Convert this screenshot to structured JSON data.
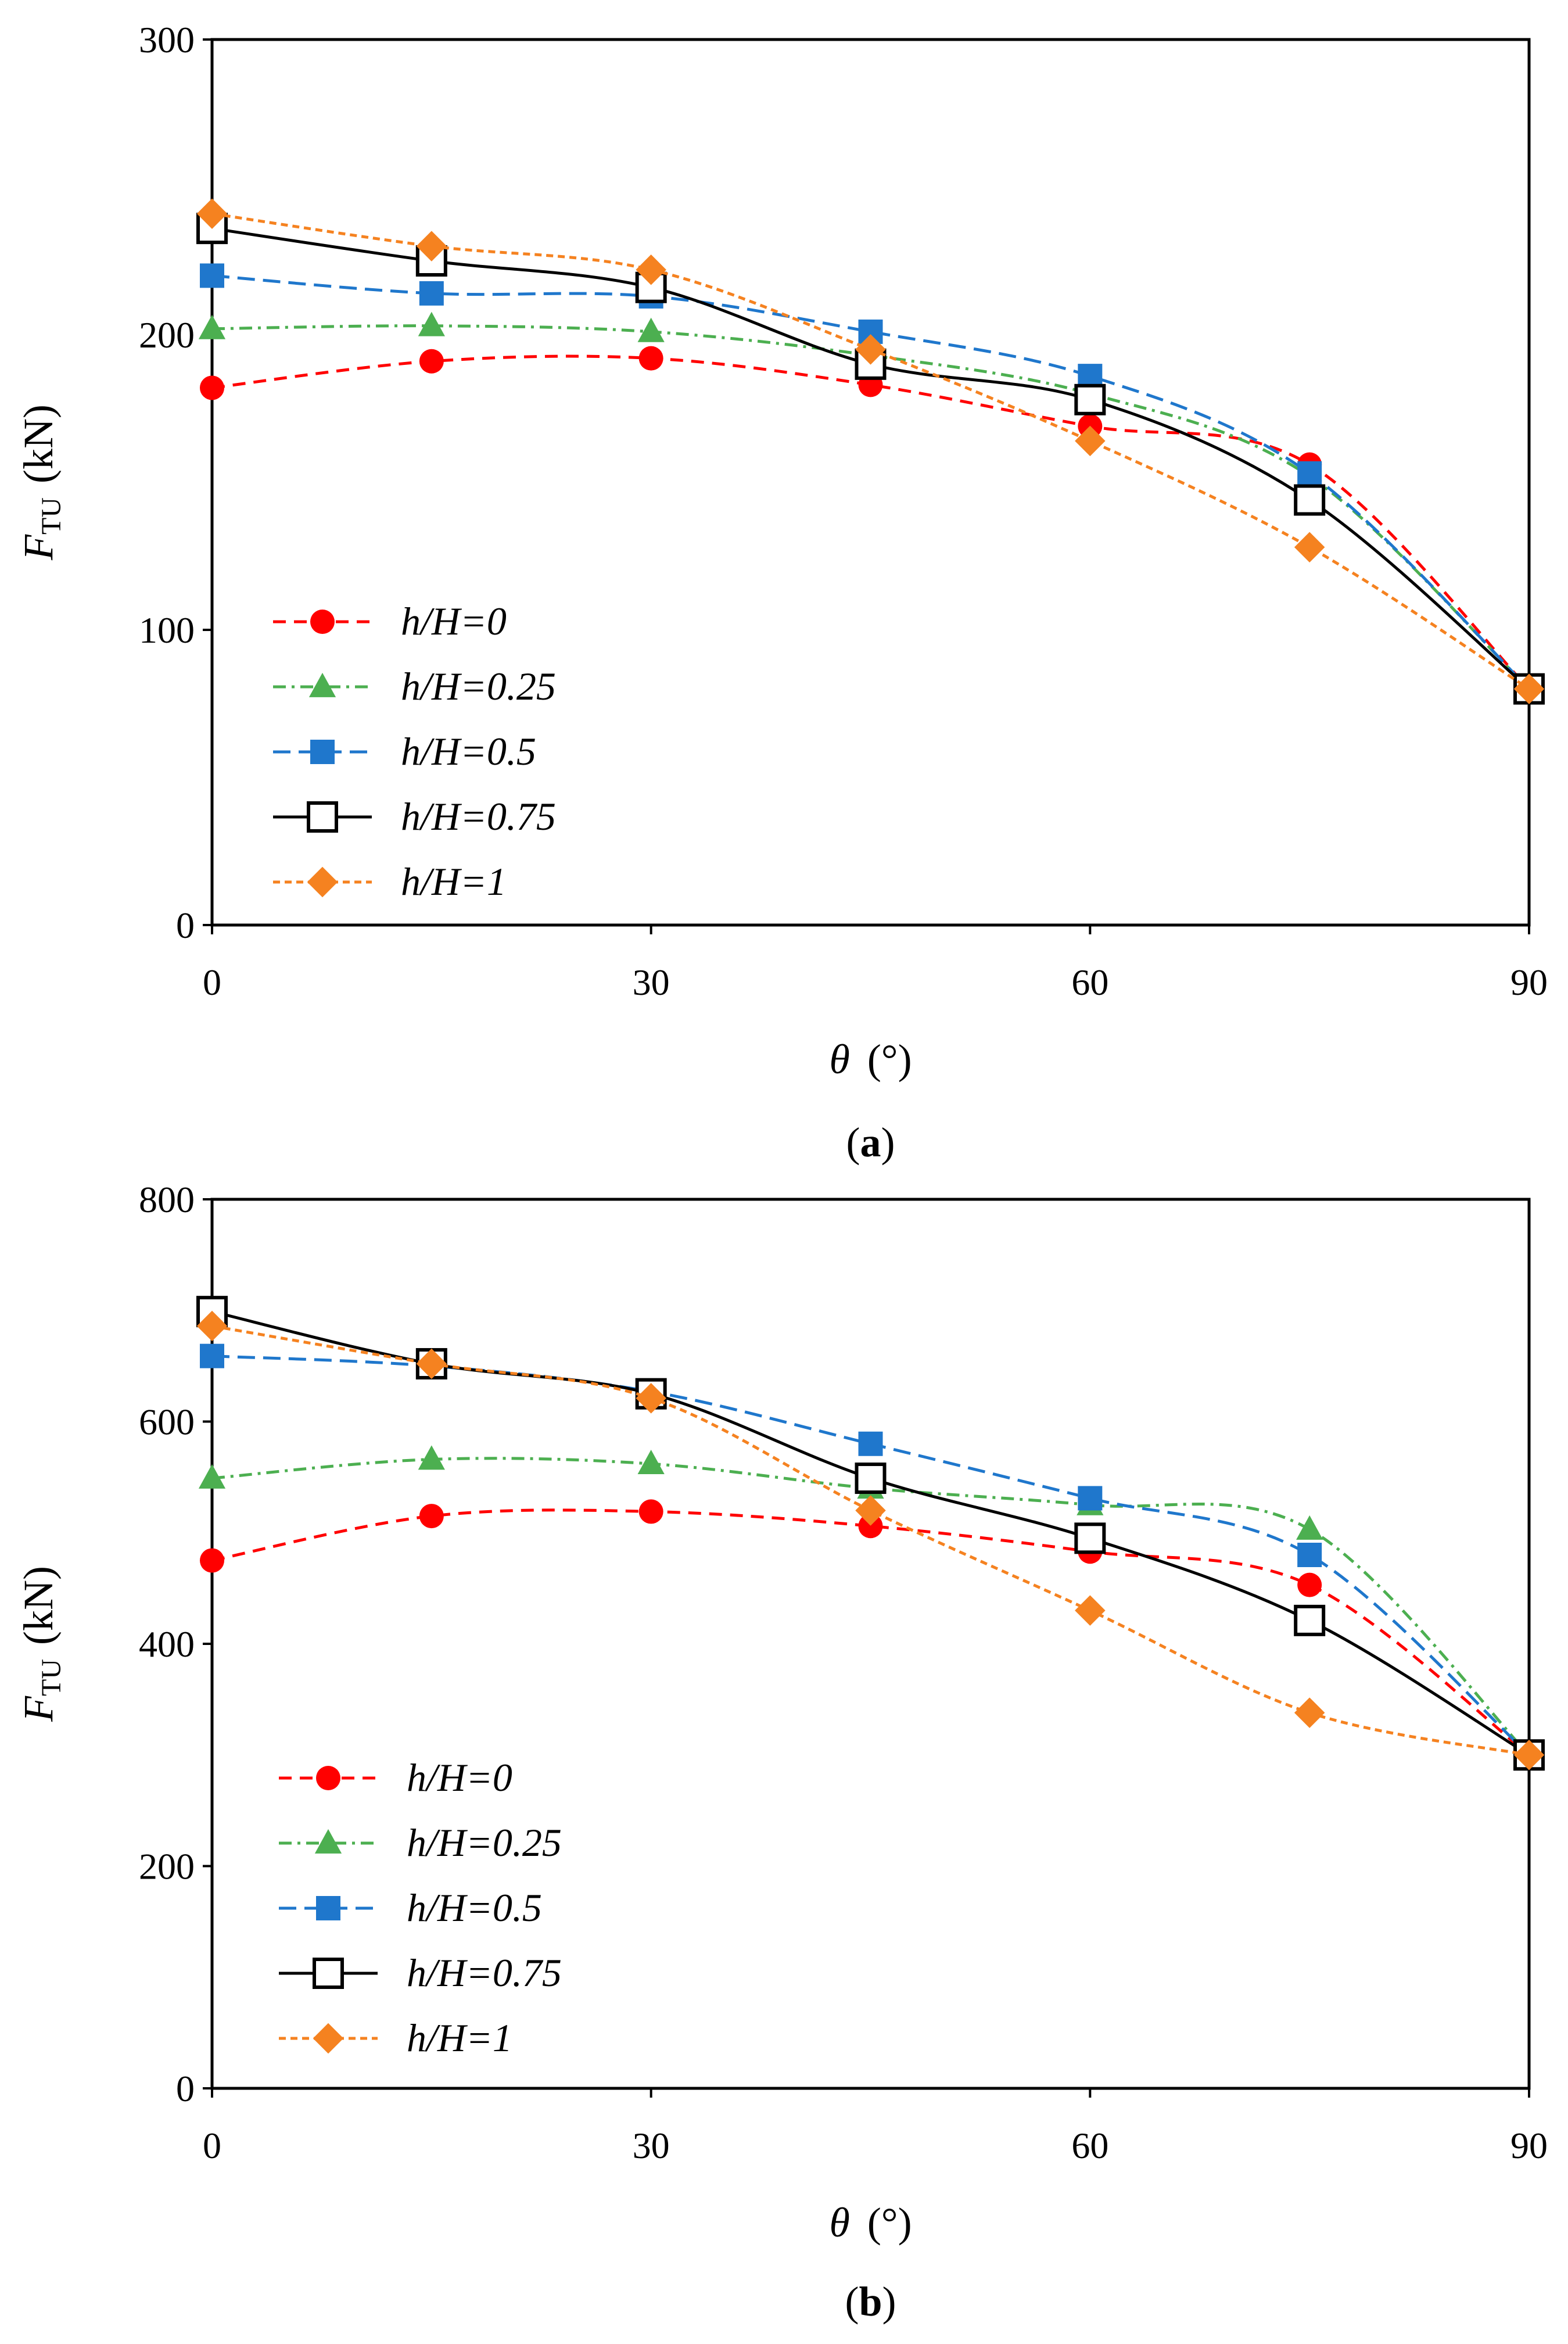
{
  "chart_data": [
    {
      "type": "line",
      "panel_label": "a",
      "xlabel": "θ",
      "xlabel_unit": "(°)",
      "ylabel": "F",
      "ylabel_sub": "TU",
      "ylabel_unit": "(kN)",
      "xlim": [
        0,
        90
      ],
      "ylim": [
        0,
        300
      ],
      "xticks": [
        "0",
        "30",
        "60",
        "90"
      ],
      "yticks": [
        "0",
        "100",
        "200",
        "300"
      ],
      "x": [
        0,
        15,
        30,
        45,
        60,
        75,
        90
      ],
      "series": [
        {
          "name": "h/H=0",
          "color": "#FF0000",
          "marker": "circle",
          "dash": "22 14",
          "values": [
            182,
            191,
            192,
            183,
            169,
            156,
            80
          ]
        },
        {
          "name": "h/H=0.25",
          "color": "#4CAF50",
          "marker": "triangle",
          "dash": "22 10 5 10",
          "values": [
            202,
            203,
            201,
            193,
            180,
            152,
            80
          ]
        },
        {
          "name": "h/H=0.5",
          "color": "#1F77CC",
          "marker": "square",
          "dash": "30 14",
          "values": [
            220,
            214,
            213,
            201,
            186,
            153,
            80
          ]
        },
        {
          "name": "h/H=0.75",
          "color": "#000000",
          "marker": "square-open",
          "dash": "",
          "values": [
            236,
            225,
            216,
            190,
            178,
            144,
            80
          ]
        },
        {
          "name": "h/H=1",
          "color": "#F58220",
          "marker": "diamond",
          "dash": "12 8",
          "values": [
            241,
            230,
            222,
            195,
            164,
            128,
            80
          ]
        }
      ]
    },
    {
      "type": "line",
      "panel_label": "b",
      "xlabel": "θ",
      "xlabel_unit": "(°)",
      "ylabel": "F",
      "ylabel_sub": "TU",
      "ylabel_unit": "(kN)",
      "xlim": [
        0,
        90
      ],
      "ylim": [
        0,
        800
      ],
      "xticks": [
        "0",
        "30",
        "60",
        "90"
      ],
      "yticks": [
        "0",
        "200",
        "400",
        "600",
        "800"
      ],
      "x": [
        0,
        15,
        30,
        45,
        60,
        75,
        90
      ],
      "series": [
        {
          "name": "h/H=0",
          "color": "#FF0000",
          "marker": "circle",
          "dash": "22 14",
          "values": [
            475,
            515,
            519,
            506,
            483,
            453,
            300
          ]
        },
        {
          "name": "h/H=0.25",
          "color": "#4CAF50",
          "marker": "triangle",
          "dash": "22 10 5 10",
          "values": [
            549,
            566,
            562,
            540,
            525,
            503,
            300
          ]
        },
        {
          "name": "h/H=0.5",
          "color": "#1F77CC",
          "marker": "square",
          "dash": "30 14",
          "values": [
            659,
            650,
            627,
            580,
            531,
            480,
            300
          ]
        },
        {
          "name": "h/H=0.75",
          "color": "#000000",
          "marker": "square-open",
          "dash": "",
          "values": [
            699,
            652,
            625,
            549,
            495,
            421,
            300
          ]
        },
        {
          "name": "h/H=1",
          "color": "#F58220",
          "marker": "diamond",
          "dash": "12 8",
          "values": [
            686,
            652,
            621,
            520,
            430,
            338,
            300
          ]
        }
      ]
    }
  ]
}
